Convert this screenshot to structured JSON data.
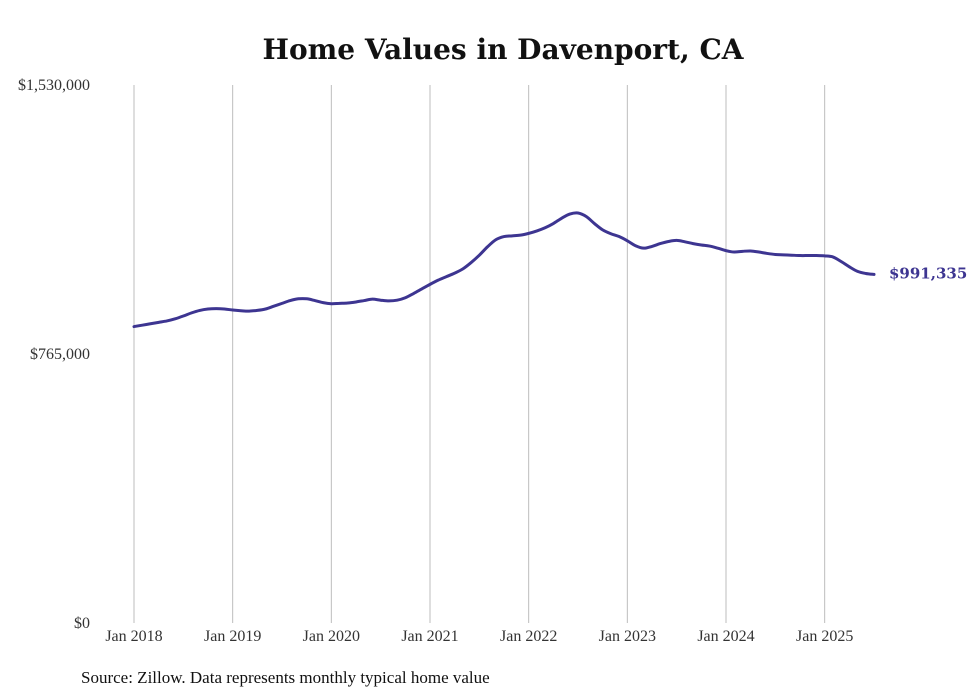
{
  "chart_data": {
    "type": "line",
    "title": "Home Values in Davenport, CA",
    "source": "Source: Zillow. Data represents monthly typical home value",
    "xlabel": "",
    "ylabel": "",
    "ylim": [
      0,
      1530000
    ],
    "y_ticks": [
      {
        "value": 0,
        "label": "$0"
      },
      {
        "value": 765000,
        "label": "$765,000"
      },
      {
        "value": 1530000,
        "label": "$1,530,000"
      }
    ],
    "x_ticks": [
      {
        "value": "2018-01",
        "label": "Jan 2018"
      },
      {
        "value": "2019-01",
        "label": "Jan 2019"
      },
      {
        "value": "2020-01",
        "label": "Jan 2020"
      },
      {
        "value": "2021-01",
        "label": "Jan 2021"
      },
      {
        "value": "2022-01",
        "label": "Jan 2022"
      },
      {
        "value": "2023-01",
        "label": "Jan 2023"
      },
      {
        "value": "2024-01",
        "label": "Jan 2024"
      },
      {
        "value": "2025-01",
        "label": "Jan 2025"
      }
    ],
    "x_range": [
      "2018-01",
      "2025-07"
    ],
    "grid": "vertical",
    "line_color": "#3d3591",
    "end_label": "$991,335",
    "series": [
      {
        "x": [
          "2018-01",
          "2018-02",
          "2018-03",
          "2018-04",
          "2018-05",
          "2018-06",
          "2018-07",
          "2018-08",
          "2018-09",
          "2018-10",
          "2018-11",
          "2018-12",
          "2019-01",
          "2019-02",
          "2019-03",
          "2019-04",
          "2019-05",
          "2019-06",
          "2019-07",
          "2019-08",
          "2019-09",
          "2019-10",
          "2019-11",
          "2019-12",
          "2020-01",
          "2020-02",
          "2020-03",
          "2020-04",
          "2020-05",
          "2020-06",
          "2020-07",
          "2020-08",
          "2020-09",
          "2020-10",
          "2020-11",
          "2020-12",
          "2021-01",
          "2021-02",
          "2021-03",
          "2021-04",
          "2021-05",
          "2021-06",
          "2021-07",
          "2021-08",
          "2021-09",
          "2021-10",
          "2021-11",
          "2021-12",
          "2022-01",
          "2022-02",
          "2022-03",
          "2022-04",
          "2022-05",
          "2022-06",
          "2022-07",
          "2022-08",
          "2022-09",
          "2022-10",
          "2022-11",
          "2022-12",
          "2023-01",
          "2023-02",
          "2023-03",
          "2023-04",
          "2023-05",
          "2023-06",
          "2023-07",
          "2023-08",
          "2023-09",
          "2023-10",
          "2023-11",
          "2023-12",
          "2024-01",
          "2024-02",
          "2024-03",
          "2024-04",
          "2024-05",
          "2024-06",
          "2024-07",
          "2024-08",
          "2024-09",
          "2024-10",
          "2024-11",
          "2024-12",
          "2025-01",
          "2025-02",
          "2025-03",
          "2025-04",
          "2025-05",
          "2025-06",
          "2025-07"
        ],
        "values": [
          843000,
          847000,
          851000,
          855000,
          859000,
          865000,
          873000,
          882000,
          889000,
          893000,
          894000,
          893000,
          890000,
          888000,
          887000,
          889000,
          893000,
          901000,
          909000,
          917000,
          922000,
          922000,
          917000,
          911000,
          908000,
          909000,
          910000,
          913000,
          917000,
          921000,
          918000,
          916000,
          918000,
          925000,
          937000,
          950000,
          963000,
          975000,
          985000,
          995000,
          1007000,
          1025000,
          1046000,
          1070000,
          1090000,
          1099000,
          1101000,
          1103000,
          1108000,
          1115000,
          1124000,
          1136000,
          1151000,
          1163000,
          1166000,
          1156000,
          1136000,
          1118000,
          1107000,
          1099000,
          1087000,
          1073000,
          1066000,
          1071000,
          1079000,
          1085000,
          1088000,
          1084000,
          1079000,
          1075000,
          1072000,
          1066000,
          1059000,
          1055000,
          1057000,
          1058000,
          1055000,
          1051000,
          1048000,
          1047000,
          1046000,
          1045000,
          1045000,
          1045000,
          1044000,
          1041000,
          1028000,
          1013000,
          1000000,
          994000,
          991335
        ]
      }
    ]
  }
}
